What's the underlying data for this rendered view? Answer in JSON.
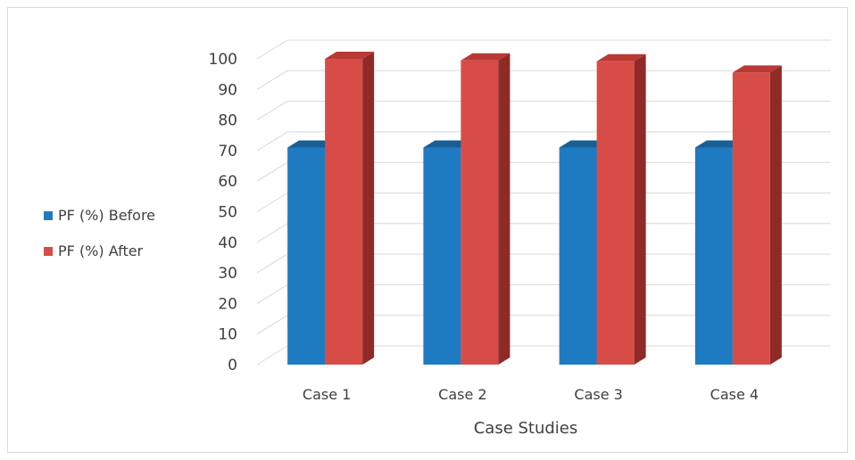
{
  "chart_data": {
    "type": "bar",
    "categories": [
      "Case 1",
      "Case 2",
      "Case 3",
      "Case 4"
    ],
    "series": [
      {
        "name": "PF (%) Before",
        "values": [
          71,
          71,
          71,
          71
        ]
      },
      {
        "name": "PF (%) After",
        "values": [
          100,
          99.5,
          99.2,
          95.5
        ]
      }
    ],
    "xlabel": "Case Studies",
    "ylabel": "",
    "ylim": [
      0,
      100
    ],
    "yticks": [
      "0",
      "10",
      "20",
      "30",
      "40",
      "50",
      "60",
      "70",
      "80",
      "90",
      "100"
    ],
    "grid": true,
    "legend_position": "left",
    "colors": {
      "before_front": "#1f7bc1",
      "before_top": "#1a5f94",
      "before_side": "#155789",
      "after_front": "#d84c47",
      "after_top": "#b93935",
      "after_side": "#8e2a27",
      "grid": "#d9d9d9",
      "text": "#404040"
    }
  }
}
